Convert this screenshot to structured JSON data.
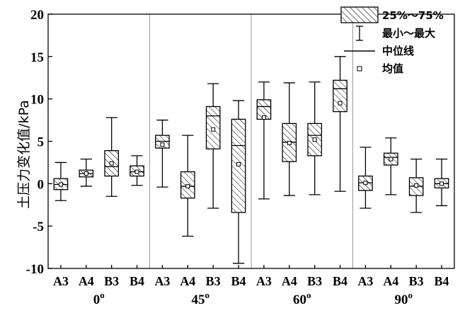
{
  "chart_data": {
    "type": "box",
    "ylabel": "土压力变化值/kPa",
    "ylim": [
      -10,
      20
    ],
    "yticks": [
      -10,
      -5,
      0,
      5,
      10,
      15,
      20
    ],
    "groups": [
      {
        "label": "0°",
        "degree_symbol_superscript": true
      },
      {
        "label": "45°",
        "degree_symbol_superscript": true
      },
      {
        "label": "60°",
        "degree_symbol_superscript": true
      },
      {
        "label": "90°",
        "degree_symbol_superscript": true
      }
    ],
    "categories": [
      "A3",
      "A4",
      "B3",
      "B4"
    ],
    "boxes": [
      {
        "group": 0,
        "category": "A3",
        "min": -2.0,
        "q1": -0.7,
        "median": -0.1,
        "q3": 0.6,
        "max": 2.5,
        "mean": -0.1
      },
      {
        "group": 0,
        "category": "A4",
        "min": -0.3,
        "q1": 0.8,
        "median": 1.2,
        "q3": 1.6,
        "max": 2.9,
        "mean": 1.2
      },
      {
        "group": 0,
        "category": "B3",
        "min": -1.5,
        "q1": 0.9,
        "median": 2.0,
        "q3": 3.9,
        "max": 7.8,
        "mean": 2.4
      },
      {
        "group": 0,
        "category": "B4",
        "min": -0.2,
        "q1": 0.9,
        "median": 1.4,
        "q3": 2.1,
        "max": 3.3,
        "mean": 1.4
      },
      {
        "group": 1,
        "category": "A3",
        "min": -0.4,
        "q1": 4.2,
        "median": 5.0,
        "q3": 5.7,
        "max": 7.5,
        "mean": 4.6
      },
      {
        "group": 1,
        "category": "A4",
        "min": -6.2,
        "q1": -1.7,
        "median": -0.3,
        "q3": 1.4,
        "max": 5.7,
        "mean": -0.3
      },
      {
        "group": 1,
        "category": "B3",
        "min": -2.9,
        "q1": 4.1,
        "median": 8.0,
        "q3": 9.1,
        "max": 11.8,
        "mean": 6.4
      },
      {
        "group": 1,
        "category": "B4",
        "min": -9.4,
        "q1": -3.4,
        "median": 4.5,
        "q3": 7.6,
        "max": 9.8,
        "mean": 2.3
      },
      {
        "group": 2,
        "category": "A3",
        "min": -1.8,
        "q1": 7.6,
        "median": 9.1,
        "q3": 9.9,
        "max": 12.0,
        "mean": 7.8
      },
      {
        "group": 2,
        "category": "A4",
        "min": -1.4,
        "q1": 2.6,
        "median": 4.9,
        "q3": 7.1,
        "max": 11.9,
        "mean": 4.8
      },
      {
        "group": 2,
        "category": "B3",
        "min": -1.3,
        "q1": 3.3,
        "median": 5.7,
        "q3": 7.1,
        "max": 12.0,
        "mean": 5.2
      },
      {
        "group": 2,
        "category": "B4",
        "min": -0.9,
        "q1": 8.5,
        "median": 11.2,
        "q3": 12.2,
        "max": 15.0,
        "mean": 9.5
      },
      {
        "group": 3,
        "category": "A3",
        "min": -2.9,
        "q1": -0.8,
        "median": 0.1,
        "q3": 0.9,
        "max": 4.3,
        "mean": 0.1
      },
      {
        "group": 3,
        "category": "A4",
        "min": -1.3,
        "q1": 2.2,
        "median": 3.1,
        "q3": 3.6,
        "max": 5.4,
        "mean": 2.9
      },
      {
        "group": 3,
        "category": "B3",
        "min": -3.4,
        "q1": -1.4,
        "median": -0.3,
        "q3": 0.7,
        "max": 2.9,
        "mean": -0.2
      },
      {
        "group": 3,
        "category": "B4",
        "min": -2.6,
        "q1": -0.5,
        "median": 0.0,
        "q3": 0.6,
        "max": 2.9,
        "mean": 0.0
      }
    ],
    "legend": {
      "placement": "top-right",
      "items": [
        {
          "symbol": "hatched-box",
          "label": "25%～75%"
        },
        {
          "symbol": "whisker",
          "label": "最小～最大"
        },
        {
          "symbol": "line",
          "label": "中位线"
        },
        {
          "symbol": "square",
          "label": "均值"
        }
      ]
    },
    "grid": false,
    "group_separators": true
  }
}
